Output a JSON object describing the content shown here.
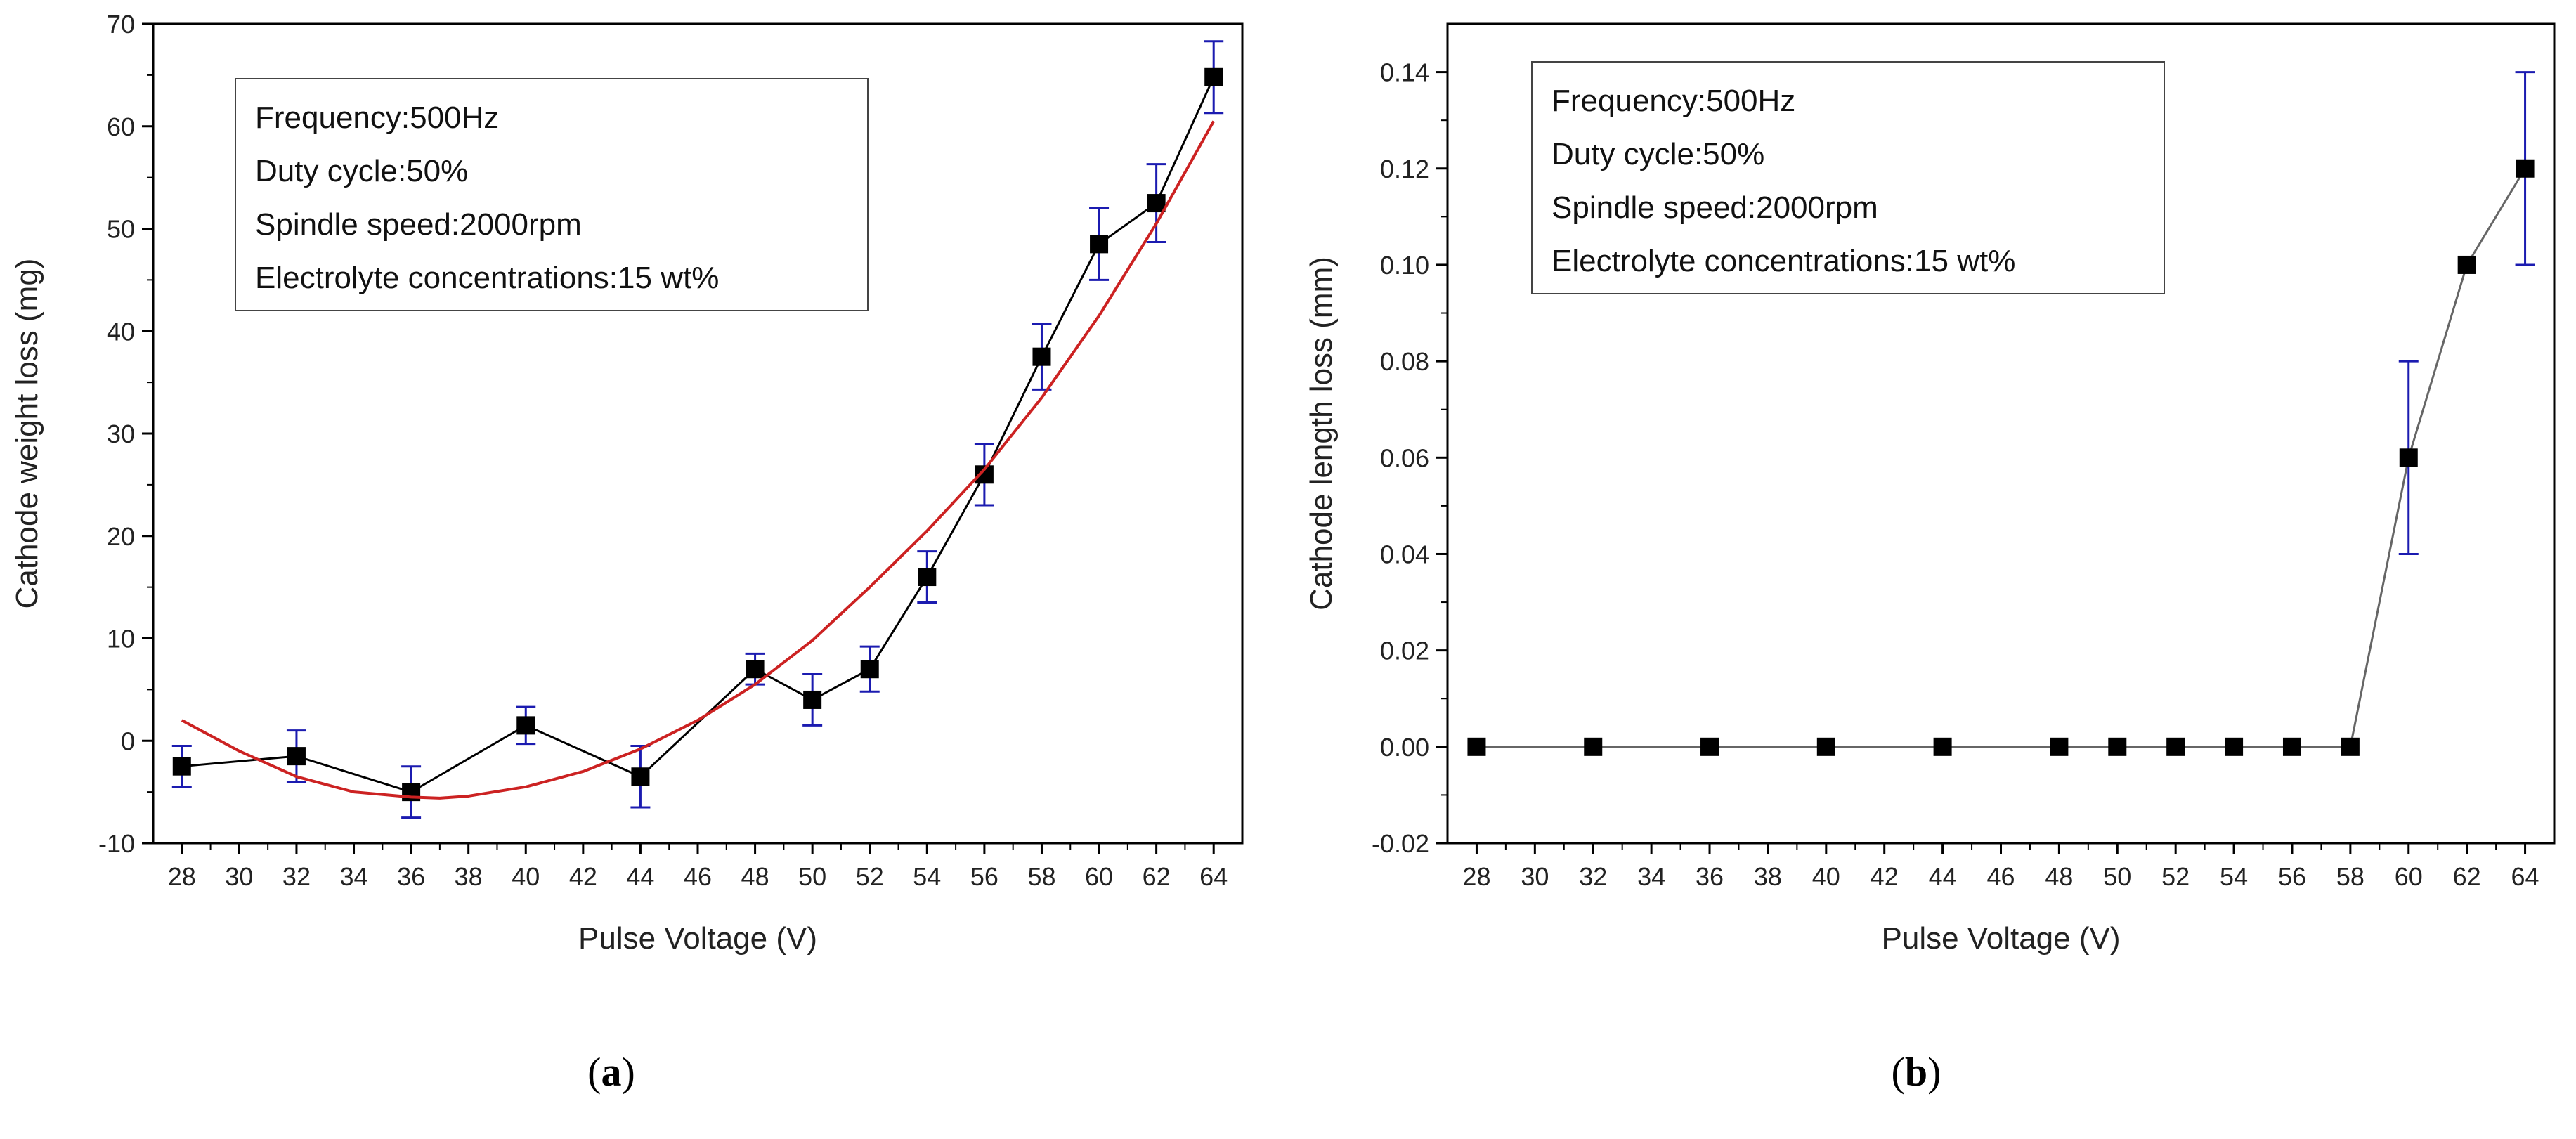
{
  "chart_data": [
    {
      "type": "scatter",
      "panel_label": "a",
      "xlabel": "Pulse Voltage (V)",
      "ylabel": "Cathode weight loss (mg)",
      "xlim": [
        27,
        65
      ],
      "ylim": [
        -10,
        70
      ],
      "xticks": [
        28,
        30,
        32,
        34,
        36,
        38,
        40,
        42,
        44,
        46,
        48,
        50,
        52,
        54,
        56,
        58,
        60,
        62,
        64
      ],
      "yticks": [
        -10,
        0,
        10,
        20,
        30,
        40,
        50,
        60,
        70
      ],
      "annotation": [
        "Frequency:500Hz",
        "Duty cycle:50%",
        "Spindle speed:2000rpm",
        "Electrolyte concentrations:15 wt%"
      ],
      "series": [
        {
          "marker": "square",
          "line_color": "#000000",
          "errorbar_color": "#1b1bb0",
          "x": [
            28,
            32,
            36,
            40,
            44,
            48,
            50,
            52,
            54,
            56,
            58,
            60,
            62,
            64
          ],
          "y": [
            -2.5,
            -1.5,
            -5.0,
            1.5,
            -3.5,
            7.0,
            4.0,
            7.0,
            16.0,
            26.0,
            37.5,
            48.5,
            52.5,
            64.8
          ],
          "err": [
            2.0,
            2.5,
            2.5,
            1.8,
            3.0,
            1.5,
            2.5,
            2.2,
            2.5,
            3.0,
            3.2,
            3.5,
            3.8,
            3.5
          ]
        },
        {
          "type": "fit_curve",
          "line_color": "#cc2222",
          "x": [
            28,
            30,
            32,
            34,
            36,
            37,
            38,
            40,
            42,
            44,
            46,
            48,
            50,
            52,
            54,
            56,
            58,
            60,
            62,
            64
          ],
          "y": [
            2.0,
            -1.0,
            -3.5,
            -5.0,
            -5.5,
            -5.6,
            -5.4,
            -4.5,
            -3.0,
            -0.8,
            2.0,
            5.5,
            9.8,
            15.0,
            20.5,
            26.5,
            33.5,
            41.5,
            50.5,
            60.5
          ]
        }
      ]
    },
    {
      "type": "line",
      "panel_label": "b",
      "xlabel": "Pulse Voltage (V)",
      "ylabel": "Cathode length loss (mm)",
      "xlim": [
        27,
        65
      ],
      "ylim": [
        -0.02,
        0.15
      ],
      "xticks": [
        28,
        30,
        32,
        34,
        36,
        38,
        40,
        42,
        44,
        46,
        48,
        50,
        52,
        54,
        56,
        58,
        60,
        62,
        64
      ],
      "yticks": [
        -0.02,
        0.0,
        0.02,
        0.04,
        0.06,
        0.08,
        0.1,
        0.12,
        0.14
      ],
      "yticks_text": [
        "-0.02",
        "0.00",
        "0.02",
        "0.04",
        "0.06",
        "0.08",
        "0.10",
        "0.12",
        "0.14"
      ],
      "annotation": [
        "Frequency:500Hz",
        "Duty cycle:50%",
        "Spindle speed:2000rpm",
        "Electrolyte concentrations:15 wt%"
      ],
      "series": [
        {
          "marker": "square",
          "line_color": "#666666",
          "errorbar_color": "#1b1bb0",
          "x": [
            28,
            32,
            36,
            40,
            44,
            48,
            50,
            52,
            54,
            56,
            58,
            60,
            62,
            64
          ],
          "y": [
            0,
            0,
            0,
            0,
            0,
            0,
            0,
            0,
            0,
            0,
            0,
            0.06,
            0.1,
            0.12
          ],
          "err": [
            0,
            0,
            0,
            0,
            0,
            0,
            0,
            0,
            0,
            0,
            0,
            0.02,
            0,
            0.02
          ]
        }
      ]
    }
  ]
}
